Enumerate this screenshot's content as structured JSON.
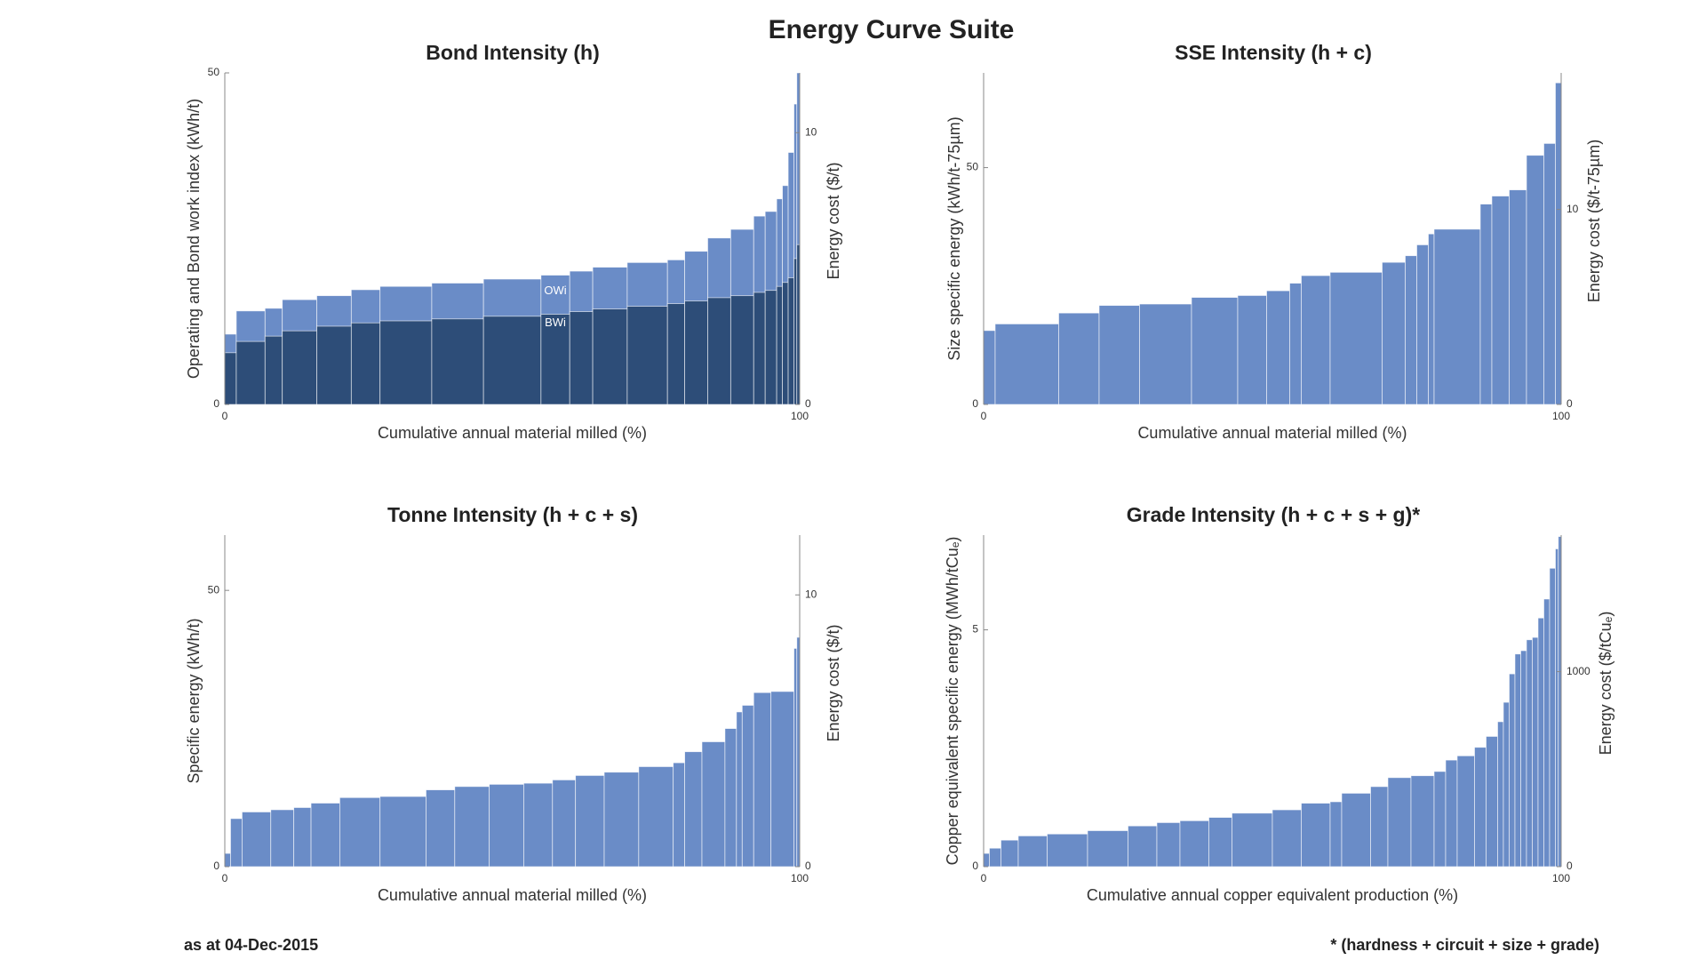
{
  "title": "Energy Curve Suite",
  "footer_left": "as at  04-Dec-2015",
  "footer_right": "* (hardness + circuit + size + grade)",
  "chart_data": [
    {
      "type": "histogram",
      "title": "Bond Intensity (h)",
      "xlabel": "Cumulative annual material milled (%)",
      "ylabel": "Operating and Bond work index (kWh/t)",
      "y2label": "Energy cost ($/t)",
      "bins": [
        0,
        2,
        7,
        10,
        16,
        22,
        27,
        36,
        45,
        55,
        60,
        64,
        70,
        77,
        80,
        84,
        88,
        92,
        94,
        96,
        97,
        98,
        99,
        99.5,
        100
      ],
      "series": [
        {
          "name": "OWi",
          "color": "#6a8cc7",
          "values": [
            10.6,
            14.1,
            14.5,
            15.8,
            16.4,
            17.3,
            17.8,
            18.3,
            18.9,
            19.5,
            20.1,
            20.7,
            21.4,
            21.8,
            23.1,
            25.1,
            26.4,
            28.4,
            29.1,
            31,
            33,
            38,
            45.3,
            50
          ]
        },
        {
          "name": "BWi",
          "color": "#2d4d78",
          "values": [
            7.8,
            9.5,
            10.3,
            11.1,
            11.8,
            12.3,
            12.6,
            12.9,
            13.3,
            13.6,
            14.0,
            14.4,
            14.8,
            15.2,
            15.6,
            16.1,
            16.4,
            16.9,
            17.2,
            17.8,
            18.4,
            19.1,
            22,
            24.1
          ]
        }
      ],
      "xlim": [
        0,
        100
      ],
      "xticks": [
        0,
        100
      ],
      "ylim": [
        0,
        50
      ],
      "yticks": [
        0,
        50
      ],
      "y2lim": [
        0,
        12.2
      ],
      "y2ticks": [
        0,
        10
      ]
    },
    {
      "type": "histogram",
      "title": "SSE Intensity (h + c)",
      "xlabel": "Cumulative annual material milled (%)",
      "ylabel": "Size specific energy (kWh/t-75µm)",
      "y2label": "Energy cost ($/t-75µm)",
      "bins": [
        0,
        2,
        13,
        20,
        27,
        36,
        44,
        49,
        53,
        55,
        60,
        69,
        73,
        75,
        77,
        78,
        86,
        88,
        91,
        94,
        97,
        99,
        100
      ],
      "values": [
        15.6,
        17,
        19.3,
        20.9,
        21.2,
        22.6,
        23,
        24,
        25.6,
        27.2,
        27.9,
        30,
        31.4,
        33.7,
        36,
        37,
        42.3,
        44,
        45.3,
        52.6,
        55.1,
        67.9
      ],
      "color": "#6a8cc7",
      "xlim": [
        0,
        100
      ],
      "xticks": [
        0,
        100
      ],
      "ylim": [
        0,
        70
      ],
      "yticks": [
        0,
        50
      ],
      "y2lim": [
        0,
        17
      ],
      "y2ticks": [
        0,
        10
      ]
    },
    {
      "type": "histogram",
      "title": "Tonne Intensity (h + c + s)",
      "xlabel": "Cumulative annual material milled (%)",
      "ylabel": "Specific energy (kWh/t)",
      "y2label": "Energy cost ($/t)",
      "bins": [
        0,
        1,
        3,
        8,
        12,
        15,
        20,
        27,
        35,
        40,
        46,
        52,
        57,
        61,
        66,
        72,
        78,
        80,
        83,
        87,
        89,
        90,
        92,
        95,
        99,
        99.5,
        100
      ],
      "values": [
        2.4,
        8.7,
        9.9,
        10.3,
        10.7,
        11.5,
        12.5,
        12.7,
        13.9,
        14.5,
        14.9,
        15.1,
        15.7,
        16.5,
        17.1,
        18.1,
        18.8,
        20.8,
        22.6,
        25,
        28,
        29.2,
        31.5,
        31.7,
        39.5,
        41.5
      ],
      "color": "#6a8cc7",
      "xlim": [
        0,
        100
      ],
      "xticks": [
        0,
        100
      ],
      "ylim": [
        0,
        60
      ],
      "yticks": [
        0,
        50
      ],
      "y2lim": [
        0,
        12.2
      ],
      "y2ticks": [
        0,
        10
      ]
    },
    {
      "type": "histogram",
      "title": "Grade Intensity (h + c + s + g)*",
      "xlabel": "Cumulative annual copper equivalent production (%)",
      "ylabel": "Copper equivalent specific energy (MWh/tCuₑ)",
      "y2label": "Energy cost ($/tCuₑ)",
      "bins": [
        0,
        1,
        3,
        6,
        11,
        18,
        25,
        30,
        34,
        39,
        43,
        50,
        55,
        60,
        62,
        67,
        70,
        74,
        78,
        80,
        82,
        85,
        87,
        89,
        90,
        91,
        92,
        93,
        94,
        95,
        96,
        97,
        98,
        99,
        99.5,
        100
      ],
      "values": [
        0.28,
        0.39,
        0.56,
        0.65,
        0.69,
        0.76,
        0.86,
        0.93,
        0.97,
        1.04,
        1.13,
        1.2,
        1.34,
        1.37,
        1.55,
        1.69,
        1.88,
        1.92,
        2.01,
        2.25,
        2.34,
        2.52,
        2.75,
        3.06,
        3.47,
        4.07,
        4.49,
        4.56,
        4.79,
        4.84,
        5.25,
        5.65,
        6.3,
        6.71,
        6.97
      ],
      "color": "#6a8cc7",
      "xlim": [
        0,
        100
      ],
      "xticks": [
        0,
        100
      ],
      "ylim": [
        0,
        7
      ],
      "yticks": [
        0,
        5
      ],
      "y2lim": [
        0,
        1700
      ],
      "y2ticks": [
        0,
        1000
      ]
    }
  ]
}
